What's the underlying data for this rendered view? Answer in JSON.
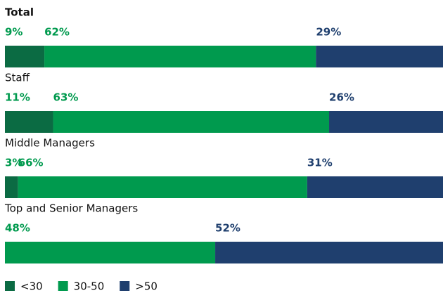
{
  "chart_data": {
    "type": "stacked-bar",
    "categories": [
      "Total",
      "Staff",
      "Middle Managers",
      "Top and Senior Managers"
    ],
    "series": [
      {
        "name": "<30",
        "color": "#0b6b43",
        "label_color": "#009a4e",
        "values": [
          9,
          11,
          3,
          null
        ],
        "value_labels": [
          "9%",
          "11%",
          "3%",
          null
        ]
      },
      {
        "name": "30-50",
        "color": "#009a4e",
        "label_color": "#009a4e",
        "values": [
          62,
          63,
          66,
          48
        ],
        "value_labels": [
          "62%",
          "63%",
          "66%",
          "48%"
        ]
      },
      {
        "name": ">50",
        "color": "#1f3f6e",
        "label_color": "#1f3f6e",
        "values": [
          29,
          26,
          31,
          52
        ],
        "value_labels": [
          "29%",
          "26%",
          "31%",
          "52%"
        ]
      }
    ],
    "xlim": [
      0,
      100
    ]
  }
}
